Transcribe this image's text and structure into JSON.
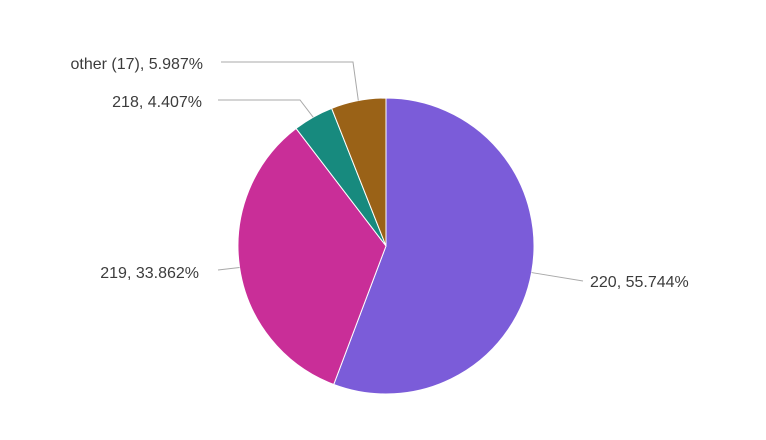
{
  "chart_data": {
    "type": "pie",
    "title": "",
    "slices": [
      {
        "label": "220, 55.744%",
        "category": "220",
        "percent": 55.744,
        "color": "#7B5CD9"
      },
      {
        "label": "219, 33.862%",
        "category": "219",
        "percent": 33.862,
        "color": "#C92E98"
      },
      {
        "label": "218, 4.407%",
        "category": "218",
        "percent": 4.407,
        "color": "#178A7E"
      },
      {
        "label": "other (17), 5.987%",
        "category": "other (17)",
        "percent": 5.987,
        "color": "#9A6217"
      }
    ],
    "legend": "none",
    "label_placement": "outside with leader lines"
  }
}
